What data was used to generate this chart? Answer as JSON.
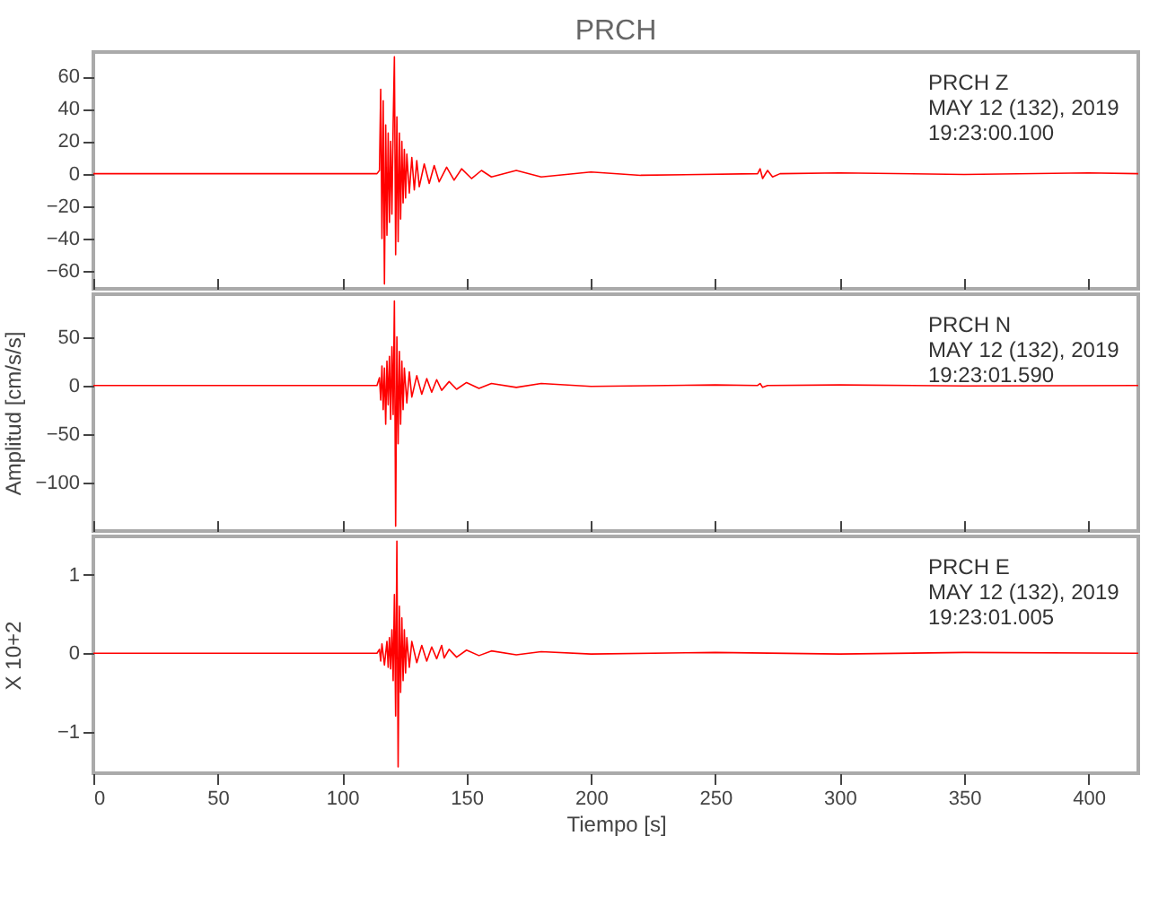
{
  "chart_data": [
    {
      "type": "line",
      "title": "PRCH",
      "annotations": [
        "PRCH   Z",
        "MAY 12 (132), 2019",
        "19:23:00.100"
      ],
      "tick_labels": "y",
      "x": [
        0,
        50,
        100,
        114,
        115,
        115.5,
        116,
        116.5,
        117,
        117.5,
        118,
        118.5,
        119,
        119.5,
        120,
        120.5,
        121,
        121.5,
        122,
        122.5,
        123,
        123.5,
        124,
        124.5,
        125,
        125.5,
        126,
        127,
        128,
        129,
        130,
        131,
        133,
        135,
        137,
        139,
        142,
        145,
        148,
        152,
        156,
        160,
        170,
        180,
        200,
        220,
        267,
        268,
        269,
        271,
        273,
        276,
        300,
        350,
        400,
        420
      ],
      "series": [
        {
          "color": "#ff0000",
          "values": [
            0,
            0,
            0,
            0,
            2,
            52,
            -40,
            45,
            -68,
            30,
            -38,
            25,
            -30,
            20,
            -25,
            30,
            72,
            -50,
            35,
            -42,
            25,
            -28,
            20,
            -18,
            15,
            -15,
            12,
            -12,
            10,
            -10,
            8,
            -8,
            6,
            -6,
            5,
            -5,
            4,
            -4,
            3,
            -3,
            2,
            -2,
            2,
            -2,
            1,
            -1,
            0,
            3,
            -3,
            2,
            -2,
            0,
            0.5,
            -0.5,
            0.5,
            0
          ]
        }
      ],
      "xlim": [
        0,
        420
      ],
      "xticks": [
        0,
        50,
        100,
        150,
        200,
        250,
        300,
        350,
        400
      ],
      "ylim": [
        -71,
        75
      ],
      "yticks": [
        -60,
        -40,
        -20,
        0,
        20,
        40,
        60
      ]
    },
    {
      "type": "line",
      "ylabel": "Amplitud [cm/s/s]",
      "annotations": [
        "PRCH   N",
        "MAY 12 (132), 2019",
        "19:23:01.590"
      ],
      "tick_labels": "y",
      "x": [
        0,
        100,
        114,
        115,
        115.5,
        116,
        116.5,
        117,
        117.5,
        118,
        118.5,
        119,
        119.5,
        120,
        120.5,
        121,
        121.5,
        122,
        122.5,
        123,
        123.5,
        124,
        124.5,
        125,
        126,
        127,
        128,
        130,
        132,
        134,
        136,
        138,
        140,
        143,
        146,
        150,
        155,
        160,
        170,
        180,
        200,
        250,
        267,
        268,
        269,
        271,
        300,
        350,
        420
      ],
      "series": [
        {
          "color": "#ff0000",
          "values": [
            0,
            0,
            0,
            8,
            -15,
            20,
            -25,
            18,
            -40,
            25,
            -20,
            30,
            -35,
            40,
            -30,
            87,
            -145,
            50,
            -60,
            35,
            -40,
            25,
            -25,
            18,
            -18,
            14,
            -12,
            10,
            -9,
            7,
            -7,
            6,
            -5,
            4,
            -4,
            3,
            -3,
            2,
            -2,
            2,
            -1,
            0.5,
            0,
            2,
            -2,
            0,
            0.5,
            -0.5,
            0
          ]
        }
      ],
      "xlim": [
        0,
        420
      ],
      "xticks": [
        0,
        50,
        100,
        150,
        200,
        250,
        300,
        350,
        400
      ],
      "ylim": [
        -150,
        94
      ],
      "yticks": [
        -100,
        -50,
        0,
        50
      ]
    },
    {
      "type": "line",
      "xlabel": "Tiempo [s]",
      "ylabel": "X 10+2",
      "annotations": [
        "PRCH   E",
        "MAY 12 (132), 2019",
        "19:23:01.005"
      ],
      "x": [
        0,
        100,
        114,
        115,
        115.5,
        116,
        117,
        118,
        118.5,
        119,
        119.5,
        120,
        120.5,
        121,
        121.5,
        122,
        122.5,
        123,
        123.5,
        124,
        124.5,
        125,
        125.5,
        126,
        127,
        128,
        130,
        132,
        134,
        136,
        138,
        140,
        141,
        143,
        146,
        150,
        155,
        160,
        170,
        180,
        200,
        250,
        300,
        350,
        420
      ],
      "series": [
        {
          "color": "#ff0000",
          "values": [
            0,
            0,
            0,
            0.05,
            -0.1,
            0.12,
            -0.15,
            0.15,
            -0.18,
            0.2,
            -0.2,
            0.3,
            -0.35,
            0.75,
            -0.8,
            1.43,
            -1.45,
            0.6,
            -0.5,
            0.45,
            -0.35,
            0.3,
            -0.25,
            0.2,
            -0.18,
            0.15,
            -0.12,
            0.1,
            -0.1,
            0.08,
            -0.07,
            0.1,
            -0.06,
            0.05,
            -0.05,
            0.04,
            -0.03,
            0.03,
            -0.02,
            0.02,
            -0.01,
            0.01,
            -0.01,
            0.01,
            0
          ]
        }
      ],
      "xlim": [
        0,
        420
      ],
      "xticks": [
        0,
        50,
        100,
        150,
        200,
        250,
        300,
        350,
        400
      ],
      "ylim": [
        -1.53,
        1.49
      ],
      "yticks": [
        -1,
        0,
        1
      ]
    }
  ]
}
